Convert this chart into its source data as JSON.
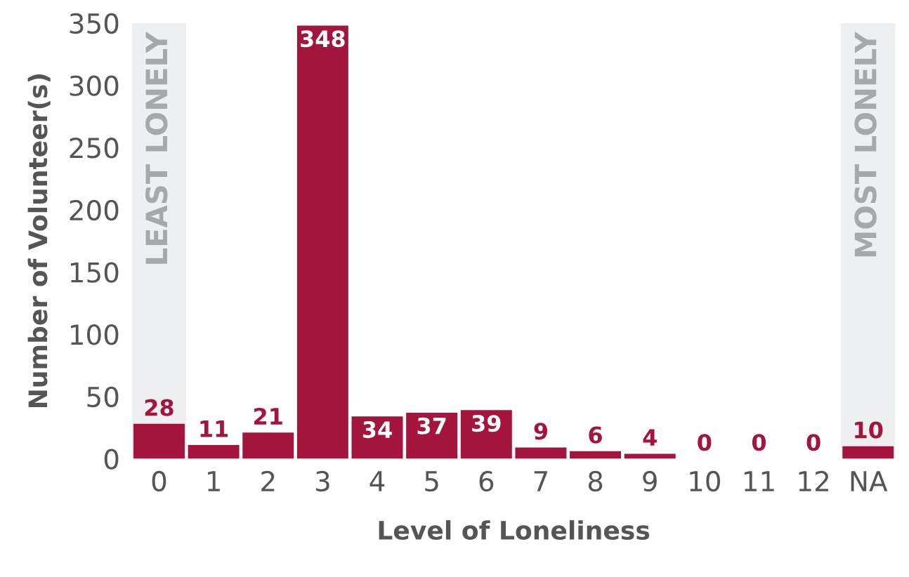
{
  "chart_data": {
    "type": "bar",
    "xlabel": "Level of Loneliness",
    "ylabel": "Number of Volunteer(s)",
    "categories": [
      "0",
      "1",
      "2",
      "3",
      "4",
      "5",
      "6",
      "7",
      "8",
      "9",
      "10",
      "11",
      "12",
      "NA"
    ],
    "values": [
      28,
      11,
      21,
      348,
      34,
      37,
      39,
      9,
      6,
      4,
      0,
      0,
      0,
      10
    ],
    "color": "#a3153d",
    "ylim": [
      0,
      350
    ],
    "yticks": [
      0,
      50,
      100,
      150,
      200,
      250,
      300,
      350
    ],
    "data_labels": true,
    "grid": false,
    "legend": false,
    "bands": [
      {
        "axis": "x",
        "from": "0",
        "to": "0",
        "label": "LEAST LONELY",
        "color": "#eeeff1"
      },
      {
        "axis": "x",
        "from": "NA",
        "to": "NA",
        "label": "MOST LONELY",
        "color": "#eeeff1"
      }
    ]
  }
}
